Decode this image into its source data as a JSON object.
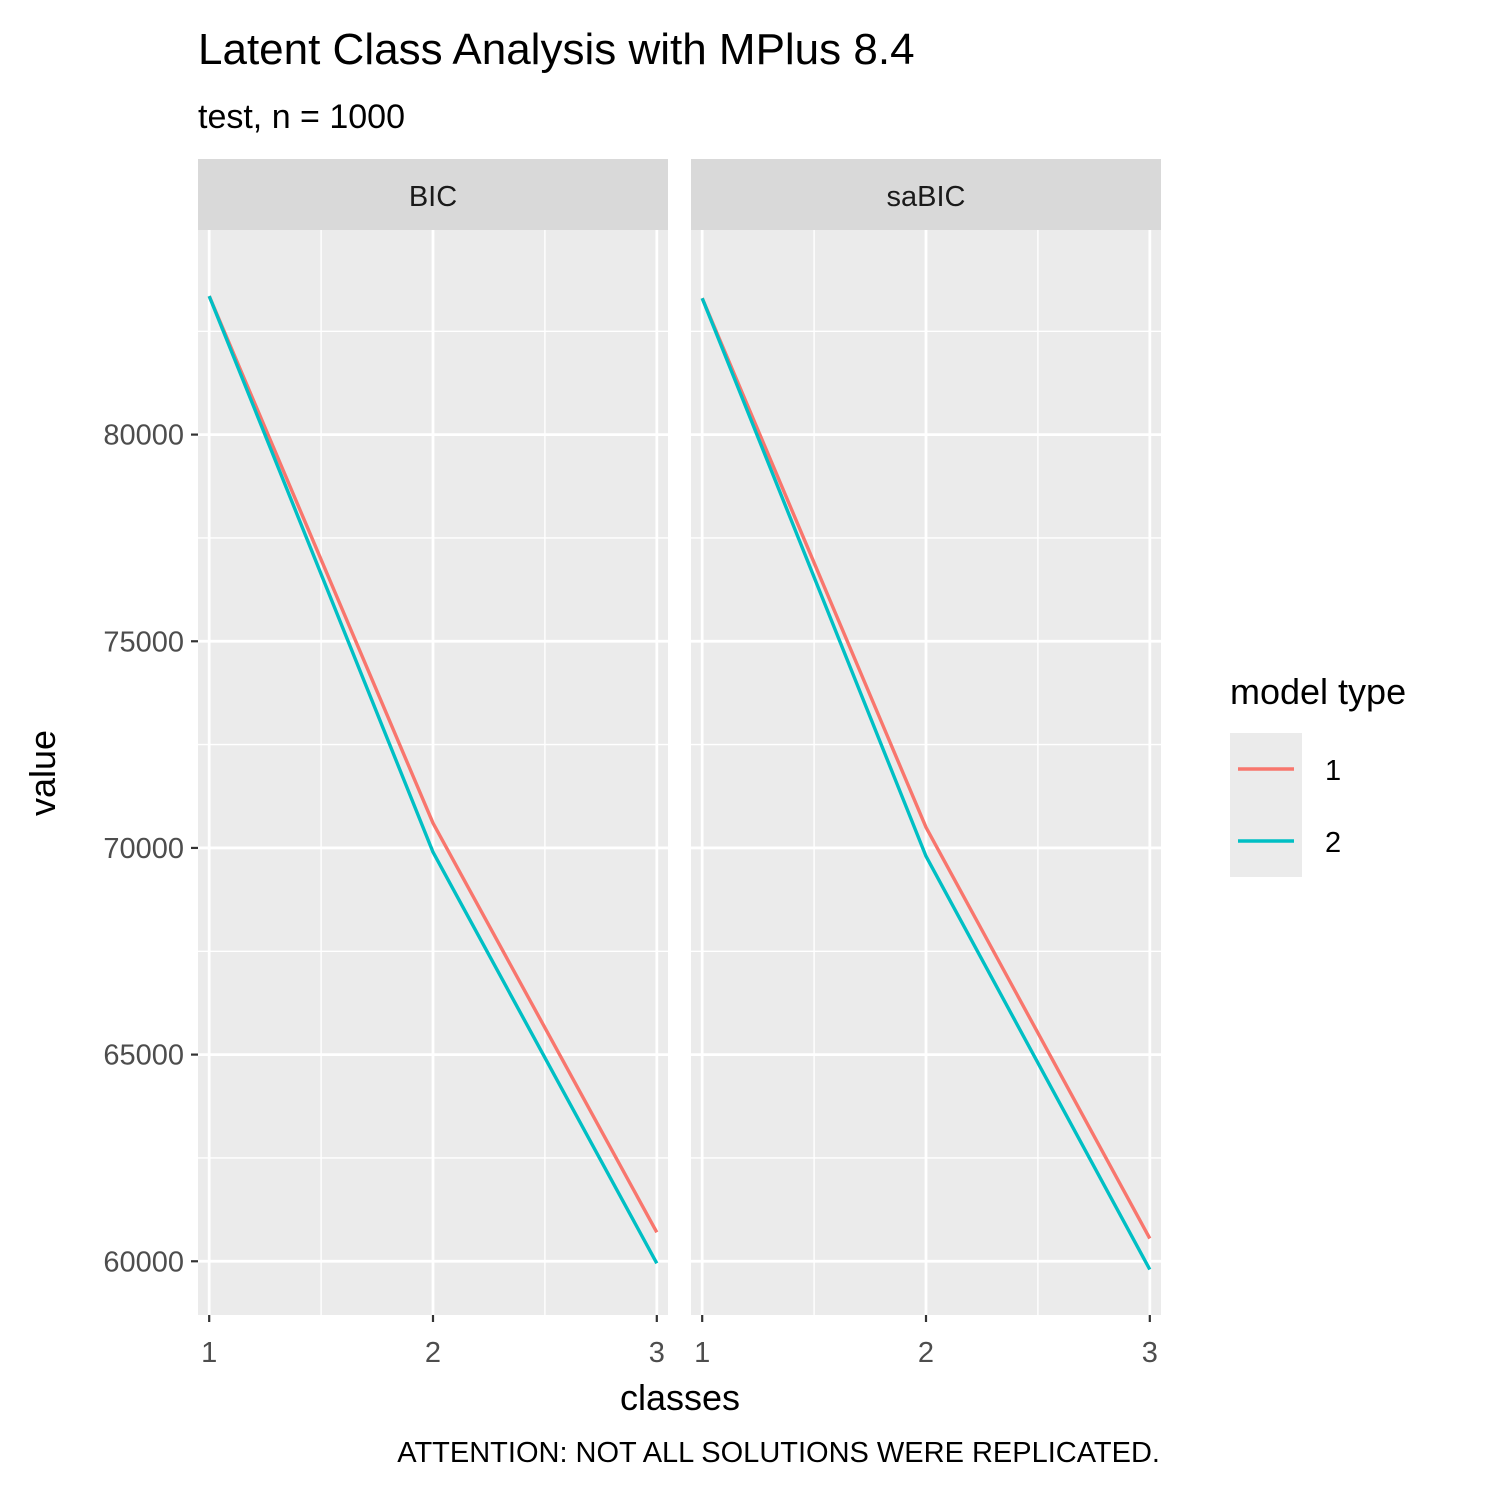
{
  "chart_data": {
    "type": "line",
    "title": "Latent Class Analysis with MPlus 8.4",
    "subtitle": "test, n = 1000",
    "caption": "ATTENTION: NOT ALL SOLUTIONS WERE REPLICATED.",
    "xlabel": "classes",
    "ylabel": "value",
    "x": [
      1,
      2,
      3
    ],
    "x_ticks": [
      "1",
      "2",
      "3"
    ],
    "xlim": [
      0.95,
      3.05
    ],
    "ylim": [
      58700,
      84950
    ],
    "y_ticks": [
      60000,
      65000,
      70000,
      75000,
      80000
    ],
    "y_tick_labels": [
      "60000",
      "65000",
      "70000",
      "75000",
      "80000"
    ],
    "grid": true,
    "legend": {
      "title": "model type",
      "position": "right",
      "entries": [
        {
          "label": "1",
          "color": "#F8766D"
        },
        {
          "label": "2",
          "color": "#00BFC4"
        }
      ]
    },
    "facets": [
      {
        "label": "BIC",
        "series": [
          {
            "name": "1",
            "color": "#F8766D",
            "values": [
              83350,
              70600,
              60700
            ]
          },
          {
            "name": "2",
            "color": "#00BFC4",
            "values": [
              83350,
              69900,
              59950
            ]
          }
        ]
      },
      {
        "label": "saBIC",
        "series": [
          {
            "name": "1",
            "color": "#F8766D",
            "values": [
              83300,
              70500,
              60550
            ]
          },
          {
            "name": "2",
            "color": "#00BFC4",
            "values": [
              83300,
              69800,
              59800
            ]
          }
        ]
      }
    ]
  }
}
